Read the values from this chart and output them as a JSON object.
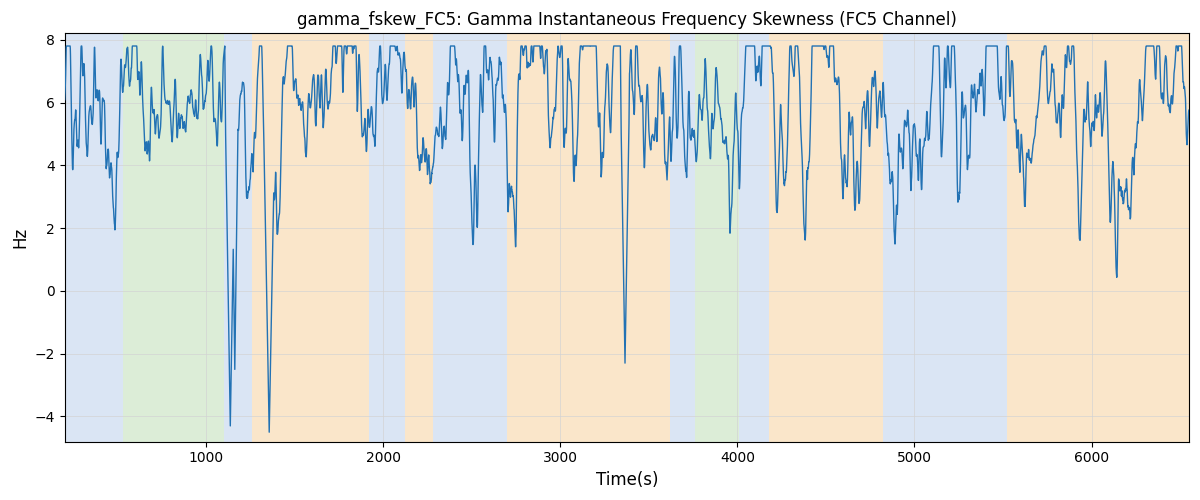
{
  "title": "gamma_fskew_FC5: Gamma Instantaneous Frequency Skewness (FC5 Channel)",
  "xlabel": "Time(s)",
  "ylabel": "Hz",
  "xlim": [
    200,
    6550
  ],
  "ylim": [
    -4.8,
    8.2
  ],
  "yticks": [
    -4,
    -2,
    0,
    2,
    4,
    6,
    8
  ],
  "xticks": [
    1000,
    2000,
    3000,
    4000,
    5000,
    6000
  ],
  "line_color": "#2272b4",
  "line_width": 1.0,
  "bg_regions": [
    {
      "start": 200,
      "end": 530,
      "color": "#aec6e8",
      "alpha": 0.45
    },
    {
      "start": 530,
      "end": 1100,
      "color": "#b2d8a8",
      "alpha": 0.45
    },
    {
      "start": 1100,
      "end": 1260,
      "color": "#aec6e8",
      "alpha": 0.45
    },
    {
      "start": 1260,
      "end": 1920,
      "color": "#f5c98a",
      "alpha": 0.45
    },
    {
      "start": 1920,
      "end": 2120,
      "color": "#aec6e8",
      "alpha": 0.45
    },
    {
      "start": 2120,
      "end": 2280,
      "color": "#f5c98a",
      "alpha": 0.45
    },
    {
      "start": 2280,
      "end": 2700,
      "color": "#aec6e8",
      "alpha": 0.45
    },
    {
      "start": 2700,
      "end": 3620,
      "color": "#f5c98a",
      "alpha": 0.45
    },
    {
      "start": 3620,
      "end": 3760,
      "color": "#aec6e8",
      "alpha": 0.45
    },
    {
      "start": 3760,
      "end": 4010,
      "color": "#b2d8a8",
      "alpha": 0.45
    },
    {
      "start": 4010,
      "end": 4180,
      "color": "#aec6e8",
      "alpha": 0.45
    },
    {
      "start": 4180,
      "end": 4820,
      "color": "#f5c98a",
      "alpha": 0.45
    },
    {
      "start": 4820,
      "end": 5520,
      "color": "#aec6e8",
      "alpha": 0.45
    },
    {
      "start": 5520,
      "end": 5760,
      "color": "#f5c98a",
      "alpha": 0.45
    },
    {
      "start": 5760,
      "end": 6550,
      "color": "#f5c98a",
      "alpha": 0.45
    }
  ],
  "seed": 12345,
  "base_value": 6.0,
  "noise_amplitude": 0.45,
  "smooth_window": 8
}
